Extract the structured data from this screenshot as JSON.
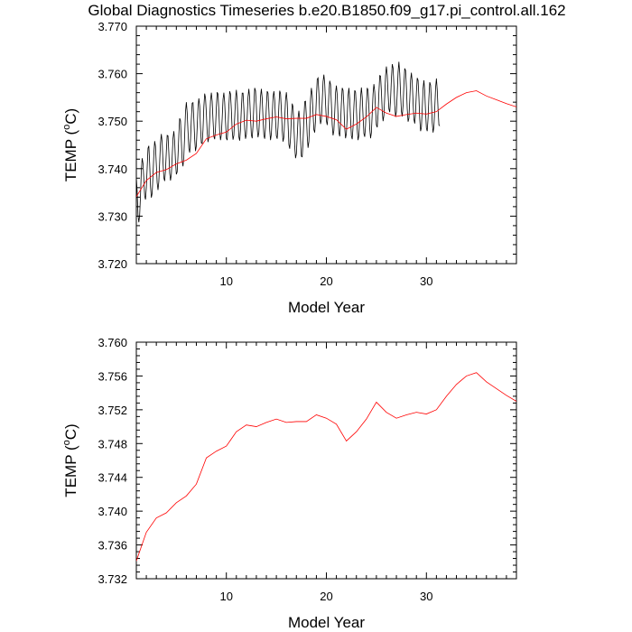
{
  "title": "Global Diagnostics Timeseries b.e20.B1850.f09_g17.pi_control.all.162",
  "colors": {
    "monthly": "#000000",
    "annual": "#ff0000",
    "frame": "#000000"
  },
  "chart_data": [
    {
      "type": "line",
      "name": "top-panel",
      "xlabel": "Model Year",
      "ylabel_main": "TEMP (",
      "ylabel_sup": "o",
      "ylabel_tail": "C)",
      "xlim": [
        1,
        39
      ],
      "ylim": [
        3.72,
        3.77
      ],
      "xticks": [
        10,
        20,
        30
      ],
      "xtick_labels": [
        "10",
        "20",
        "30"
      ],
      "yticks": [
        3.72,
        3.73,
        3.74,
        3.75,
        3.76,
        3.77
      ],
      "ytick_labels": [
        "3.720",
        "3.730",
        "3.740",
        "3.750",
        "3.760",
        "3.770"
      ],
      "series": [
        {
          "name": "monthly",
          "color": "#000000",
          "x_start": 1.0,
          "x_step": 0.0833333,
          "values": [
            3.7382,
            3.7352,
            3.7302,
            3.7287,
            3.7302,
            3.7344,
            3.7397,
            3.7422,
            3.7411,
            3.7378,
            3.7343,
            3.7335,
            3.736,
            3.7402,
            3.7443,
            3.7448,
            3.7411,
            3.7362,
            3.7339,
            3.7348,
            3.7386,
            3.7431,
            3.7458,
            3.7447,
            3.7408,
            3.737,
            3.7355,
            3.7373,
            3.7414,
            3.7455,
            3.7473,
            3.7455,
            3.7414,
            3.7381,
            3.7374,
            3.7396,
            3.7437,
            3.747,
            3.7469,
            3.7433,
            3.7391,
            3.7375,
            3.7388,
            3.7425,
            3.7464,
            3.7479,
            3.7457,
            3.7414,
            3.7388,
            3.7393,
            3.7427,
            3.7472,
            3.7506,
            3.7501,
            3.7458,
            3.7416,
            3.7405,
            3.7426,
            3.7471,
            3.752,
            3.754,
            3.7518,
            3.7478,
            3.7443,
            3.7434,
            3.7461,
            3.7504,
            3.7538,
            3.7539,
            3.7505,
            3.7462,
            3.7437,
            3.7448,
            3.7487,
            3.7529,
            3.7548,
            3.7532,
            3.7487,
            3.7454,
            3.7453,
            3.7482,
            3.753,
            3.7558,
            3.7549,
            3.7517,
            3.7477,
            3.7456,
            3.7466,
            3.7503,
            3.7543,
            3.756,
            3.7542,
            3.7502,
            3.7468,
            3.7462,
            3.7486,
            3.7529,
            3.7561,
            3.7557,
            3.7522,
            3.7478,
            3.746,
            3.7472,
            3.7506,
            3.7546,
            3.756,
            3.754,
            3.7499,
            3.7464,
            3.746,
            3.7487,
            3.7531,
            3.7563,
            3.7557,
            3.7524,
            3.748,
            3.7461,
            3.747,
            3.7508,
            3.7547,
            3.7566,
            3.7544,
            3.7502,
            3.7467,
            3.7459,
            3.7483,
            3.7527,
            3.7559,
            3.7559,
            3.7526,
            3.7483,
            3.7463,
            3.7472,
            3.7509,
            3.7551,
            3.7568,
            3.7548,
            3.7507,
            3.7471,
            3.7464,
            3.749,
            3.7535,
            3.757,
            3.7564,
            3.7531,
            3.7485,
            3.7466,
            3.7476,
            3.7513,
            3.7552,
            3.7568,
            3.7548,
            3.7506,
            3.747,
            3.7463,
            3.7487,
            3.7531,
            3.7563,
            3.7559,
            3.7524,
            3.7481,
            3.746,
            3.7473,
            3.7511,
            3.755,
            3.7563,
            3.7544,
            3.7503,
            3.7469,
            3.7463,
            3.7488,
            3.7531,
            3.7564,
            3.7558,
            3.7524,
            3.7481,
            3.7457,
            3.7466,
            3.7504,
            3.7545,
            3.7561,
            3.754,
            3.7495,
            3.7451,
            3.7442,
            3.7465,
            3.7507,
            3.7537,
            3.753,
            3.7492,
            3.7447,
            3.7422,
            3.7431,
            3.7467,
            3.7507,
            3.7522,
            3.7503,
            3.7461,
            3.7426,
            3.7425,
            3.7457,
            3.7504,
            3.7541,
            3.7542,
            3.751,
            3.7469,
            3.7444,
            3.7457,
            3.75,
            3.7547,
            3.757,
            3.7555,
            3.7516,
            3.7482,
            3.7476,
            3.7502,
            3.7549,
            3.7588,
            3.7591,
            3.7559,
            3.7516,
            3.7494,
            3.7504,
            3.7541,
            3.7583,
            3.7598,
            3.7579,
            3.7537,
            3.7501,
            3.7492,
            3.7515,
            3.7557,
            3.7585,
            3.7577,
            3.7538,
            3.7492,
            3.747,
            3.748,
            3.7518,
            3.756,
            3.7575,
            3.7555,
            3.7511,
            3.7476,
            3.7468,
            3.7494,
            3.7538,
            3.757,
            3.7565,
            3.7532,
            3.7486,
            3.7464,
            3.7474,
            3.751,
            3.7553,
            3.757,
            3.7547,
            3.7505,
            3.7469,
            3.7462,
            3.7487,
            3.7531,
            3.7565,
            3.7561,
            3.7527,
            3.7483,
            3.746,
            3.747,
            3.7507,
            3.755,
            3.7571,
            3.7551,
            3.751,
            3.7474,
            3.7467,
            3.7491,
            3.7535,
            3.757,
            3.7565,
            3.753,
            3.7485,
            3.7464,
            3.7476,
            3.7516,
            3.7558,
            3.7578,
            3.7562,
            3.7524,
            3.7492,
            3.7487,
            3.7514,
            3.756,
            3.7596,
            3.7595,
            3.7563,
            3.7521,
            3.75,
            3.7512,
            3.7552,
            3.7596,
            3.7615,
            3.7597,
            3.7558,
            3.7526,
            3.7519,
            3.7545,
            3.7589,
            3.762,
            3.7612,
            3.7577,
            3.7534,
            3.7509,
            3.752,
            3.7559,
            3.7603,
            3.7625,
            3.7601,
            3.7557,
            3.7521,
            3.751,
            3.7533,
            3.7577,
            3.7611,
            3.7607,
            3.7572,
            3.7526,
            3.7499,
            3.7506,
            3.7543,
            3.7586,
            3.7602,
            3.7582,
            3.754,
            3.7504,
            3.7495,
            3.7518,
            3.7561,
            3.7591,
            3.7586,
            3.755,
            3.7505,
            3.7479,
            3.7487,
            3.7526,
            3.7569,
            3.7586,
            3.7563,
            3.7518,
            3.7485,
            3.7479,
            3.7506,
            3.755,
            3.7582,
            3.7576,
            3.7541,
            3.7497,
            3.7476,
            3.7488,
            3.7526,
            3.757,
            3.759,
            3.7566,
            3.7524,
            3.7492,
            3.749
          ]
        },
        {
          "name": "annual",
          "color": "#ff0000",
          "x": [
            1,
            2,
            3,
            4,
            5,
            6,
            7,
            8,
            9,
            10,
            11,
            12,
            13,
            14,
            15,
            16,
            17,
            18,
            19,
            20,
            21,
            22,
            23,
            24,
            25,
            26,
            27,
            28,
            29,
            30,
            31,
            32,
            33,
            34,
            35,
            36,
            37,
            38,
            39
          ],
          "values": [
            3.7341,
            3.7375,
            3.7392,
            3.7398,
            3.741,
            3.7418,
            3.7432,
            3.7463,
            3.7471,
            3.7477,
            3.7494,
            3.7502,
            3.75,
            3.7505,
            3.7509,
            3.7505,
            3.7506,
            3.7506,
            3.7514,
            3.751,
            3.7503,
            3.7483,
            3.7494,
            3.7509,
            3.7529,
            3.7517,
            3.751,
            3.7514,
            3.7517,
            3.7515,
            3.752,
            3.7536,
            3.755,
            3.756,
            3.7564,
            3.7553,
            3.7545,
            3.7537,
            3.753
          ]
        }
      ]
    },
    {
      "type": "line",
      "name": "bottom-panel",
      "xlabel": "Model Year",
      "ylabel_main": "TEMP (",
      "ylabel_sup": "o",
      "ylabel_tail": "C)",
      "xlim": [
        1,
        39
      ],
      "ylim": [
        3.732,
        3.76
      ],
      "xticks": [
        10,
        20,
        30
      ],
      "xtick_labels": [
        "10",
        "20",
        "30"
      ],
      "yticks": [
        3.732,
        3.736,
        3.74,
        3.744,
        3.748,
        3.752,
        3.756,
        3.76
      ],
      "ytick_labels": [
        "3.732",
        "3.736",
        "3.740",
        "3.744",
        "3.748",
        "3.752",
        "3.756",
        "3.760"
      ],
      "series": [
        {
          "name": "annual",
          "color": "#ff0000",
          "x": [
            1,
            2,
            3,
            4,
            5,
            6,
            7,
            8,
            9,
            10,
            11,
            12,
            13,
            14,
            15,
            16,
            17,
            18,
            19,
            20,
            21,
            22,
            23,
            24,
            25,
            26,
            27,
            28,
            29,
            30,
            31,
            32,
            33,
            34,
            35,
            36,
            37,
            38,
            39
          ],
          "values": [
            3.7341,
            3.7375,
            3.7392,
            3.7398,
            3.741,
            3.7418,
            3.7432,
            3.7463,
            3.7471,
            3.7477,
            3.7494,
            3.7502,
            3.75,
            3.7505,
            3.7509,
            3.7505,
            3.7506,
            3.7506,
            3.7514,
            3.751,
            3.7503,
            3.7483,
            3.7494,
            3.7509,
            3.7529,
            3.7517,
            3.751,
            3.7514,
            3.7517,
            3.7515,
            3.752,
            3.7536,
            3.755,
            3.756,
            3.7564,
            3.7553,
            3.7545,
            3.7537,
            3.753
          ]
        }
      ]
    }
  ]
}
